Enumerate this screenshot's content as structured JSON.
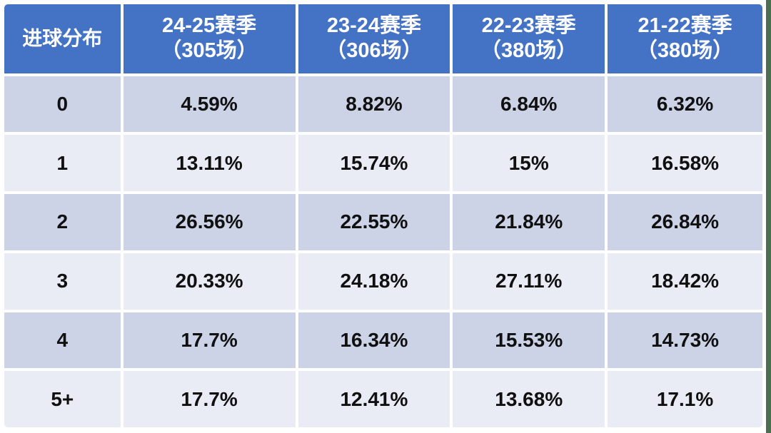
{
  "table": {
    "corner_label": "进球分布",
    "season_headers": [
      {
        "season": "24-25赛季",
        "games": "（305场）"
      },
      {
        "season": "23-24赛季",
        "games": "（306场）"
      },
      {
        "season": "22-23赛季",
        "games": "（380场）"
      },
      {
        "season": "21-22赛季",
        "games": "（380场）"
      }
    ],
    "rows": [
      {
        "label": "0",
        "values": [
          "4.59%",
          "8.82%",
          "6.84%",
          "6.32%"
        ]
      },
      {
        "label": "1",
        "values": [
          "13.11%",
          "15.74%",
          "15%",
          "16.58%"
        ]
      },
      {
        "label": "2",
        "values": [
          "26.56%",
          "22.55%",
          "21.84%",
          "26.84%"
        ]
      },
      {
        "label": "3",
        "values": [
          "20.33%",
          "24.18%",
          "27.11%",
          "18.42%"
        ]
      },
      {
        "label": "4",
        "values": [
          "17.7%",
          "16.34%",
          "15.53%",
          "14.73%"
        ]
      },
      {
        "label": "5+",
        "values": [
          "17.7%",
          "12.41%",
          "13.68%",
          "17.1%"
        ]
      }
    ]
  },
  "colors": {
    "header_bg": "#4472c4",
    "header_text": "#ffffff",
    "band_dark": "#cdd3e7",
    "band_light": "#e9ebf5",
    "body_text": "#101010",
    "gutter": "#ffffff",
    "right_edge_strip": "#4b6e52"
  },
  "chart_data": {
    "type": "table",
    "title": "进球分布 (goal distribution by season)",
    "columns": [
      "进球分布",
      "24-25赛季（305场）",
      "23-24赛季（306场）",
      "22-23赛季（380场）",
      "21-22赛季（380场）"
    ],
    "rows": [
      [
        "0",
        "4.59%",
        "8.82%",
        "6.84%",
        "6.32%"
      ],
      [
        "1",
        "13.11%",
        "15.74%",
        "15%",
        "16.58%"
      ],
      [
        "2",
        "26.56%",
        "22.55%",
        "21.84%",
        "26.84%"
      ],
      [
        "3",
        "20.33%",
        "24.18%",
        "27.11%",
        "18.42%"
      ],
      [
        "4",
        "17.7%",
        "16.34%",
        "15.53%",
        "14.73%"
      ],
      [
        "5+",
        "17.7%",
        "12.41%",
        "13.68%",
        "17.1%"
      ]
    ],
    "layout_hints": {
      "header_fill": "#4472c4",
      "banded_rows": [
        "#cdd3e7",
        "#e9ebf5"
      ],
      "first_band": "dark",
      "cell_text": "bold, centered"
    }
  }
}
